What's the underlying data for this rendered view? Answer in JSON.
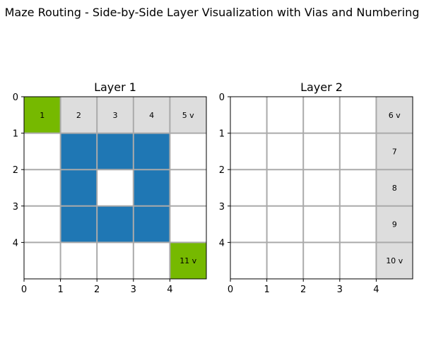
{
  "figure_title": "Maze Routing - Side-by-Side Layer Visualization with Vias and Numbering",
  "colors": {
    "empty": "#ffffff",
    "wall": "#1f77b4",
    "route": "#dddddd",
    "endpoint": "#76b900",
    "grid": "#aaaaaa",
    "frame": "#000000"
  },
  "chart_data": [
    {
      "type": "heatmap",
      "title": "Layer 1",
      "xlim": [
        0,
        5
      ],
      "ylim": [
        5,
        0
      ],
      "xticks": [
        "0",
        "1",
        "2",
        "3",
        "4"
      ],
      "yticks": [
        "0",
        "1",
        "2",
        "3",
        "4"
      ],
      "grid": true,
      "cells": [
        {
          "row": 0,
          "col": 0,
          "kind": "endpoint",
          "label": "1"
        },
        {
          "row": 0,
          "col": 1,
          "kind": "route",
          "label": "2"
        },
        {
          "row": 0,
          "col": 2,
          "kind": "route",
          "label": "3"
        },
        {
          "row": 0,
          "col": 3,
          "kind": "route",
          "label": "4"
        },
        {
          "row": 0,
          "col": 4,
          "kind": "route",
          "label": "5 v"
        },
        {
          "row": 1,
          "col": 1,
          "kind": "wall"
        },
        {
          "row": 1,
          "col": 2,
          "kind": "wall"
        },
        {
          "row": 1,
          "col": 3,
          "kind": "wall"
        },
        {
          "row": 2,
          "col": 1,
          "kind": "wall"
        },
        {
          "row": 2,
          "col": 3,
          "kind": "wall"
        },
        {
          "row": 3,
          "col": 1,
          "kind": "wall"
        },
        {
          "row": 3,
          "col": 2,
          "kind": "wall"
        },
        {
          "row": 3,
          "col": 3,
          "kind": "wall"
        },
        {
          "row": 4,
          "col": 4,
          "kind": "endpoint",
          "label": "11 v"
        }
      ]
    },
    {
      "type": "heatmap",
      "title": "Layer 2",
      "xlim": [
        0,
        5
      ],
      "ylim": [
        5,
        0
      ],
      "xticks": [
        "0",
        "1",
        "2",
        "3",
        "4"
      ],
      "yticks": [
        "0",
        "1",
        "2",
        "3",
        "4"
      ],
      "grid": true,
      "cells": [
        {
          "row": 0,
          "col": 4,
          "kind": "route",
          "label": "6 v"
        },
        {
          "row": 1,
          "col": 4,
          "kind": "route",
          "label": "7"
        },
        {
          "row": 2,
          "col": 4,
          "kind": "route",
          "label": "8"
        },
        {
          "row": 3,
          "col": 4,
          "kind": "route",
          "label": "9"
        },
        {
          "row": 4,
          "col": 4,
          "kind": "route",
          "label": "10 v"
        }
      ]
    }
  ]
}
